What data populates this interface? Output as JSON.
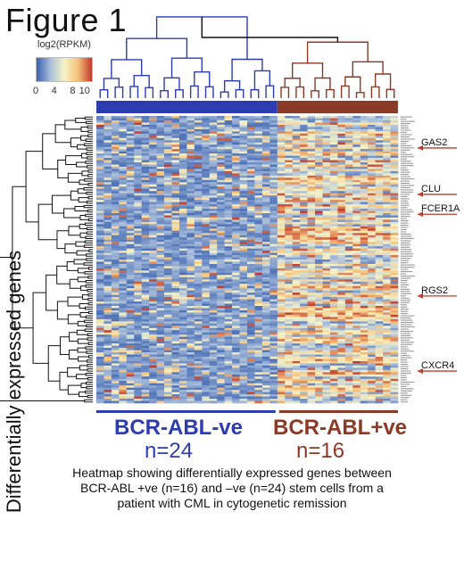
{
  "figure_title": "Figure 1",
  "legend": {
    "title": "log2(RPKM)",
    "ticks": [
      0,
      4,
      8,
      10
    ],
    "range": [
      0,
      12
    ],
    "colors": [
      "#3b62b0",
      "#a9bedb",
      "#f7f3c6",
      "#f6c17a",
      "#c0392b"
    ]
  },
  "y_axis_label": "Differentially expressed genes",
  "groups": [
    {
      "label": "BCR-ABL-ve",
      "n_label": "n=24",
      "n": 24,
      "color": "#2d3cb0"
    },
    {
      "label": "BCR-ABL+ve",
      "n_label": "n=16",
      "n": 16,
      "color": "#8a3a26"
    }
  ],
  "highlighted_genes": [
    {
      "name": "GAS2",
      "row": 14
    },
    {
      "name": "CLU",
      "row": 35
    },
    {
      "name": "FCER1A",
      "row": 44
    },
    {
      "name": "RGS2",
      "row": 81
    },
    {
      "name": "CXCR4",
      "row": 115
    }
  ],
  "caption": {
    "lines": [
      "Heatmap showing differentially expressed genes between",
      "BCR-ABL +ve (n=16) and –ve (n=24) stem cells from a",
      "patient with CML in cytogenetic remission"
    ]
  },
  "chart_data": {
    "type": "heatmap",
    "title": "Figure 1",
    "ylabel": "Differentially expressed genes",
    "n_genes": 130,
    "columns": [
      {
        "group": "BCR-ABL-ve",
        "count": 24
      },
      {
        "group": "BCR-ABL+ve",
        "count": 16
      }
    ],
    "value_range": [
      0,
      12
    ],
    "pattern": "Most genes low (blue) in BCR-ABL-ve cells; many genes higher (yellow/orange) in BCR-ABL+ve cells",
    "dendrograms": {
      "rows": true,
      "columns": true
    }
  }
}
